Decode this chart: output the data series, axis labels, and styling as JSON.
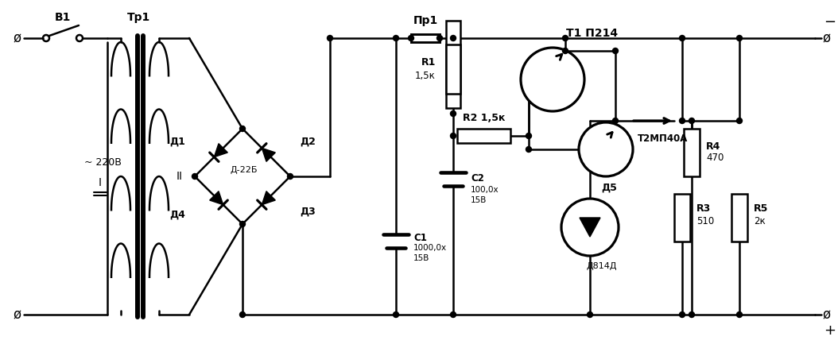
{
  "figsize": [
    10.54,
    4.38
  ],
  "dpi": 100,
  "bg": "#ffffff",
  "lc": "#000000",
  "lw": 1.8,
  "T": 390,
  "B": 42,
  "labels": {
    "B1": "В1",
    "Tp1": "Тр1",
    "ac": "~ 220В",
    "wI": "I",
    "wII": "II",
    "D22B": "Д-22Б",
    "D1": "Д1",
    "D2": "Д2",
    "D3": "Д3",
    "D4": "Д4",
    "fuse": "Пр1",
    "C1l1": "С1",
    "C1l2": "1000,0х",
    "C1l3": "15В",
    "R1l1": "R1",
    "R1l2": "1,5к",
    "R2": "R2 1,5к",
    "C2l1": "С2",
    "C2l2": "100,0х",
    "C2l3": "15В",
    "T1": "Т1 П214",
    "T2": "Т2МП40А",
    "D5a": "Д5",
    "D5b": "Д814Д",
    "R3l1": "R3",
    "R3l2": "510",
    "R4l1": "R4",
    "R4l2": "470",
    "R5l1": "R5",
    "R5l2": "2к",
    "minus": "−",
    "plus": "+"
  }
}
